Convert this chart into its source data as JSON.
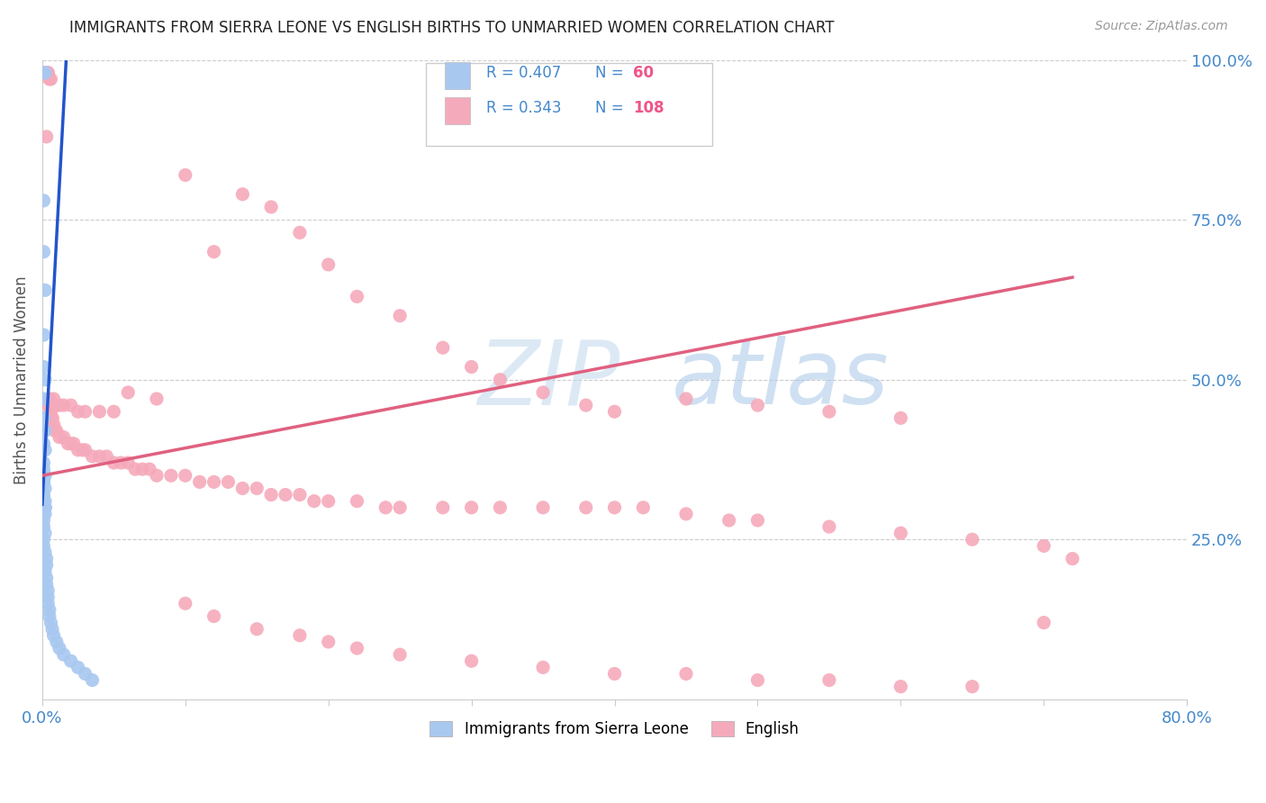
{
  "title": "IMMIGRANTS FROM SIERRA LEONE VS ENGLISH BIRTHS TO UNMARRIED WOMEN CORRELATION CHART",
  "source": "Source: ZipAtlas.com",
  "ylabel": "Births to Unmarried Women",
  "yticks_right": [
    "100.0%",
    "75.0%",
    "50.0%",
    "25.0%"
  ],
  "yticks_right_vals": [
    1.0,
    0.75,
    0.5,
    0.25
  ],
  "legend_label_blue": "Immigrants from Sierra Leone",
  "legend_label_pink": "English",
  "blue_color": "#A8C8F0",
  "pink_color": "#F5AABB",
  "trendline_blue_color": "#2255CC",
  "trendline_pink_color": "#E06080",
  "watermark_color": "#C8DCF0",
  "background_color": "#FFFFFF",
  "xmin": 0.0,
  "xmax": 0.8,
  "ymin": 0.0,
  "ymax": 1.0,
  "blue_x": [
    0.001,
    0.002,
    0.001,
    0.001,
    0.002,
    0.001,
    0.001,
    0.002,
    0.001,
    0.001,
    0.002,
    0.001,
    0.002,
    0.001,
    0.001,
    0.002,
    0.001,
    0.001,
    0.002,
    0.001,
    0.001,
    0.001,
    0.002,
    0.001,
    0.001,
    0.002,
    0.001,
    0.002,
    0.001,
    0.001,
    0.002,
    0.001,
    0.001,
    0.002,
    0.001,
    0.001,
    0.002,
    0.001,
    0.001,
    0.002,
    0.003,
    0.003,
    0.002,
    0.003,
    0.003,
    0.004,
    0.004,
    0.004,
    0.005,
    0.005,
    0.006,
    0.007,
    0.008,
    0.01,
    0.012,
    0.015,
    0.02,
    0.025,
    0.03,
    0.035
  ],
  "blue_y": [
    0.98,
    0.98,
    0.78,
    0.7,
    0.64,
    0.57,
    0.52,
    0.5,
    0.47,
    0.44,
    0.42,
    0.4,
    0.39,
    0.37,
    0.36,
    0.35,
    0.34,
    0.34,
    0.33,
    0.32,
    0.31,
    0.31,
    0.31,
    0.3,
    0.3,
    0.3,
    0.3,
    0.3,
    0.3,
    0.3,
    0.3,
    0.3,
    0.29,
    0.29,
    0.28,
    0.27,
    0.26,
    0.25,
    0.24,
    0.23,
    0.22,
    0.21,
    0.2,
    0.19,
    0.18,
    0.17,
    0.16,
    0.15,
    0.14,
    0.13,
    0.12,
    0.11,
    0.1,
    0.09,
    0.08,
    0.07,
    0.06,
    0.05,
    0.04,
    0.03
  ],
  "pink_x": [
    0.003,
    0.004,
    0.004,
    0.005,
    0.006,
    0.006,
    0.007,
    0.007,
    0.008,
    0.009,
    0.01,
    0.012,
    0.015,
    0.018,
    0.02,
    0.022,
    0.025,
    0.028,
    0.03,
    0.035,
    0.04,
    0.045,
    0.05,
    0.055,
    0.06,
    0.065,
    0.07,
    0.075,
    0.08,
    0.09,
    0.1,
    0.11,
    0.12,
    0.13,
    0.14,
    0.15,
    0.16,
    0.17,
    0.18,
    0.19,
    0.2,
    0.22,
    0.24,
    0.25,
    0.28,
    0.3,
    0.32,
    0.35,
    0.38,
    0.4,
    0.42,
    0.45,
    0.48,
    0.5,
    0.55,
    0.6,
    0.65,
    0.7,
    0.72,
    0.003,
    0.004,
    0.005,
    0.006,
    0.008,
    0.01,
    0.012,
    0.015,
    0.02,
    0.025,
    0.03,
    0.04,
    0.05,
    0.06,
    0.08,
    0.1,
    0.12,
    0.14,
    0.16,
    0.18,
    0.2,
    0.22,
    0.25,
    0.28,
    0.3,
    0.32,
    0.35,
    0.38,
    0.4,
    0.1,
    0.12,
    0.15,
    0.18,
    0.2,
    0.22,
    0.25,
    0.3,
    0.35,
    0.4,
    0.45,
    0.5,
    0.55,
    0.6,
    0.65,
    0.7,
    0.45,
    0.5,
    0.55,
    0.6
  ],
  "pink_y": [
    0.98,
    0.98,
    0.98,
    0.97,
    0.97,
    0.45,
    0.44,
    0.44,
    0.43,
    0.42,
    0.42,
    0.41,
    0.41,
    0.4,
    0.4,
    0.4,
    0.39,
    0.39,
    0.39,
    0.38,
    0.38,
    0.38,
    0.37,
    0.37,
    0.37,
    0.36,
    0.36,
    0.36,
    0.35,
    0.35,
    0.35,
    0.34,
    0.34,
    0.34,
    0.33,
    0.33,
    0.32,
    0.32,
    0.32,
    0.31,
    0.31,
    0.31,
    0.3,
    0.3,
    0.3,
    0.3,
    0.3,
    0.3,
    0.3,
    0.3,
    0.3,
    0.29,
    0.28,
    0.28,
    0.27,
    0.26,
    0.25,
    0.24,
    0.22,
    0.88,
    0.46,
    0.47,
    0.46,
    0.47,
    0.46,
    0.46,
    0.46,
    0.46,
    0.45,
    0.45,
    0.45,
    0.45,
    0.48,
    0.47,
    0.82,
    0.7,
    0.79,
    0.77,
    0.73,
    0.68,
    0.63,
    0.6,
    0.55,
    0.52,
    0.5,
    0.48,
    0.46,
    0.45,
    0.15,
    0.13,
    0.11,
    0.1,
    0.09,
    0.08,
    0.07,
    0.06,
    0.05,
    0.04,
    0.04,
    0.03,
    0.03,
    0.02,
    0.02,
    0.12,
    0.47,
    0.46,
    0.45,
    0.44
  ],
  "blue_trend_x0": 0.0,
  "blue_trend_y0": 0.305,
  "blue_trend_x1": 0.016,
  "blue_trend_y1": 0.97,
  "pink_trend_x0": 0.0,
  "pink_trend_y0": 0.35,
  "pink_trend_x1": 0.72,
  "pink_trend_y1": 0.66
}
